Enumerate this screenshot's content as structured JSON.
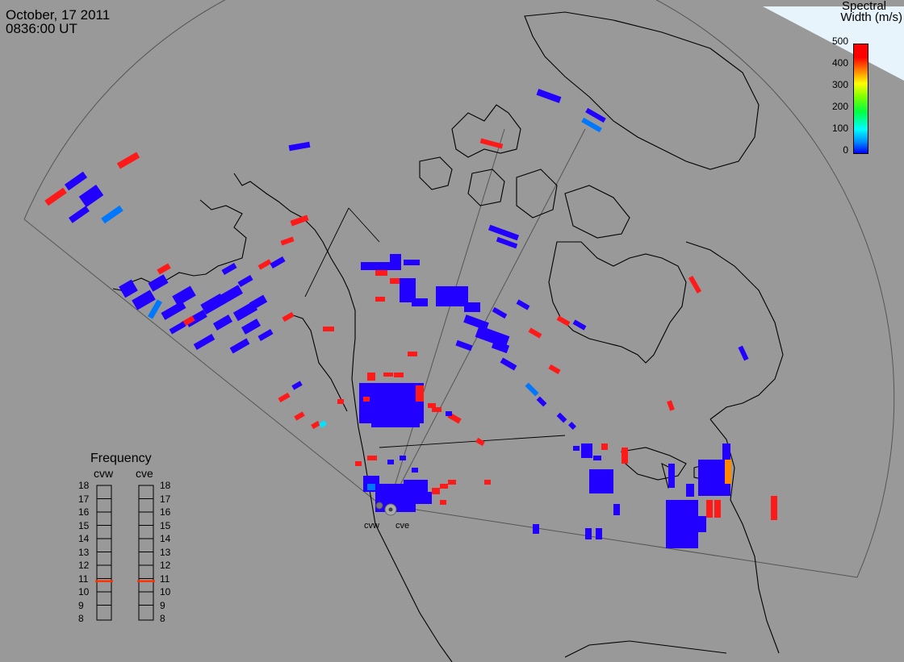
{
  "header": {
    "date": "October, 17 2011",
    "time": "0836:00 UT"
  },
  "colorbar": {
    "title_line1": "Spectral",
    "title_line2": "Width (m/s)",
    "ticks": [
      "500",
      "400",
      "300",
      "200",
      "100",
      "0"
    ],
    "colors": [
      "#ff0000",
      "#ff8000",
      "#ffff00",
      "#00ff40",
      "#00ffff",
      "#0000ff"
    ]
  },
  "frequency": {
    "title": "Frequency",
    "radar_left": "cvw",
    "radar_right": "cve",
    "ticks": [
      "18",
      "17",
      "16",
      "15",
      "14",
      "13",
      "12",
      "11",
      "10",
      "9",
      "8"
    ],
    "cvw_value": 10.8,
    "cve_value": 10.8,
    "marker_color": "#ff3300"
  },
  "radars": {
    "left_label": "cvw",
    "right_label": "cve"
  },
  "colors": {
    "background": "#999999",
    "coast": "#000000",
    "low_width": "#2200ff",
    "high_width": "#ff1a1a",
    "mid_width": "#0077ff",
    "cyan": "#00e5ff",
    "orange": "#ff8800"
  }
}
